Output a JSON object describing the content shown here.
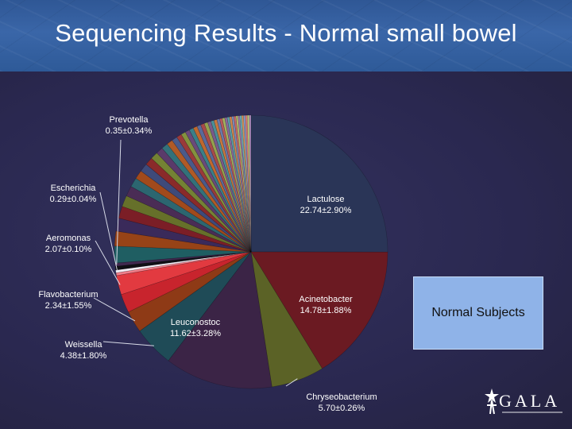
{
  "slide": {
    "title": "Sequencing Results - Normal small bowel",
    "legend_box_label": "Normal Subjects",
    "logo_text": "GALA"
  },
  "chart_data": {
    "type": "pie",
    "title": "",
    "slices": [
      {
        "name": "Lactulose",
        "label": "22.74±2.90%",
        "value": 22.74,
        "color": "#2a3557",
        "labeled": true
      },
      {
        "name": "Acinetobacter",
        "label": "14.78±1.88%",
        "value": 14.78,
        "color": "#6b1a22",
        "labeled": true
      },
      {
        "name": "Chryseobacterium",
        "label": "5.70±0.26%",
        "value": 5.7,
        "color": "#5b6226",
        "labeled": true
      },
      {
        "name": "Leuconostoc",
        "label": "11.62±3.28%",
        "value": 11.62,
        "color": "#3b2446",
        "labeled": true
      },
      {
        "name": "Weissella",
        "label": "4.38±1.80%",
        "value": 4.38,
        "color": "#1f4b57",
        "labeled": true
      },
      {
        "name": "Flavobacterium",
        "label": "2.34±1.55%",
        "value": 2.34,
        "color": "#8e3a16",
        "labeled": true
      },
      {
        "name": "",
        "label": "",
        "value": 2.0,
        "color": "#c8242d",
        "labeled": false
      },
      {
        "name": "Aeromonas",
        "label": "2.07±0.10%",
        "value": 2.07,
        "color": "#e23a40",
        "labeled": true
      },
      {
        "name": "",
        "label": "",
        "value": 0.3,
        "color": "#f07f8a",
        "labeled": false
      },
      {
        "name": "Escherichia",
        "label": "0.29±0.04%",
        "value": 0.29,
        "color": "#f3eef5",
        "labeled": true
      },
      {
        "name": "",
        "label": "",
        "value": 0.4,
        "color": "#101015",
        "labeled": false
      },
      {
        "name": "Prevotella",
        "label": "0.35±0.34%",
        "value": 0.35,
        "color": "#40294f",
        "labeled": true
      },
      {
        "name": "",
        "label": "",
        "value": 1.8,
        "color": "#1f5e62",
        "labeled": false
      },
      {
        "name": "",
        "label": "",
        "value": 1.6,
        "color": "#974317",
        "labeled": false
      },
      {
        "name": "",
        "label": "",
        "value": 1.4,
        "color": "#3a2a5a",
        "labeled": false
      },
      {
        "name": "",
        "label": "",
        "value": 1.3,
        "color": "#7b1e26",
        "labeled": false
      },
      {
        "name": "",
        "label": "",
        "value": 1.2,
        "color": "#66702a",
        "labeled": false
      },
      {
        "name": "",
        "label": "",
        "value": 1.1,
        "color": "#4a2c55",
        "labeled": false
      },
      {
        "name": "",
        "label": "",
        "value": 1.0,
        "color": "#2c6670",
        "labeled": false
      },
      {
        "name": "",
        "label": "",
        "value": 0.95,
        "color": "#a14a1c",
        "labeled": false
      },
      {
        "name": "",
        "label": "",
        "value": 0.9,
        "color": "#3e4a7a",
        "labeled": false
      },
      {
        "name": "",
        "label": "",
        "value": 0.85,
        "color": "#8a2a2a",
        "labeled": false
      },
      {
        "name": "",
        "label": "",
        "value": 0.8,
        "color": "#748234",
        "labeled": false
      },
      {
        "name": "",
        "label": "",
        "value": 0.75,
        "color": "#5a3a6a",
        "labeled": false
      },
      {
        "name": "",
        "label": "",
        "value": 0.7,
        "color": "#33717a",
        "labeled": false
      },
      {
        "name": "",
        "label": "",
        "value": 0.65,
        "color": "#b05a26",
        "labeled": false
      },
      {
        "name": "",
        "label": "",
        "value": 0.6,
        "color": "#4a5a8a",
        "labeled": false
      },
      {
        "name": "",
        "label": "",
        "value": 0.55,
        "color": "#9a3a3a",
        "labeled": false
      },
      {
        "name": "",
        "label": "",
        "value": 0.5,
        "color": "#84923e",
        "labeled": false
      },
      {
        "name": "",
        "label": "",
        "value": 0.48,
        "color": "#6a4a7a",
        "labeled": false
      },
      {
        "name": "",
        "label": "",
        "value": 0.46,
        "color": "#3b7f88",
        "labeled": false
      },
      {
        "name": "",
        "label": "",
        "value": 0.44,
        "color": "#c0682e",
        "labeled": false
      },
      {
        "name": "",
        "label": "",
        "value": 0.42,
        "color": "#5a6a9a",
        "labeled": false
      },
      {
        "name": "",
        "label": "",
        "value": 0.4,
        "color": "#a84a4a",
        "labeled": false
      },
      {
        "name": "",
        "label": "",
        "value": 0.38,
        "color": "#94a24e",
        "labeled": false
      },
      {
        "name": "",
        "label": "",
        "value": 0.36,
        "color": "#7a5a8a",
        "labeled": false
      },
      {
        "name": "",
        "label": "",
        "value": 0.34,
        "color": "#4b8f98",
        "labeled": false
      },
      {
        "name": "",
        "label": "",
        "value": 0.32,
        "color": "#c8783e",
        "labeled": false
      },
      {
        "name": "",
        "label": "",
        "value": 0.3,
        "color": "#6a7aaa",
        "labeled": false
      },
      {
        "name": "",
        "label": "",
        "value": 0.28,
        "color": "#b85a5a",
        "labeled": false
      },
      {
        "name": "",
        "label": "",
        "value": 0.27,
        "color": "#a4b25e",
        "labeled": false
      },
      {
        "name": "",
        "label": "",
        "value": 0.26,
        "color": "#8a6a9a",
        "labeled": false
      },
      {
        "name": "",
        "label": "",
        "value": 0.25,
        "color": "#5b9fa8",
        "labeled": false
      },
      {
        "name": "",
        "label": "",
        "value": 0.24,
        "color": "#d0884e",
        "labeled": false
      },
      {
        "name": "",
        "label": "",
        "value": 0.23,
        "color": "#7a8aba",
        "labeled": false
      },
      {
        "name": "",
        "label": "",
        "value": 0.22,
        "color": "#c86a6a",
        "labeled": false
      },
      {
        "name": "",
        "label": "",
        "value": 0.21,
        "color": "#b4c26e",
        "labeled": false
      },
      {
        "name": "",
        "label": "",
        "value": 0.2,
        "color": "#9a7aaa",
        "labeled": false
      },
      {
        "name": "",
        "label": "",
        "value": 0.2,
        "color": "#6bafb8",
        "labeled": false
      },
      {
        "name": "",
        "label": "",
        "value": 0.2,
        "color": "#d8985e",
        "labeled": false
      },
      {
        "name": "",
        "label": "",
        "value": 0.2,
        "color": "#8a9aca",
        "labeled": false
      },
      {
        "name": "",
        "label": "",
        "value": 0.2,
        "color": "#d87a7a",
        "labeled": false
      },
      {
        "name": "",
        "label": "",
        "value": 0.2,
        "color": "#c4d27e",
        "labeled": false
      },
      {
        "name": "",
        "label": "",
        "value": 0.2,
        "color": "#aa8aba",
        "labeled": false
      }
    ]
  }
}
